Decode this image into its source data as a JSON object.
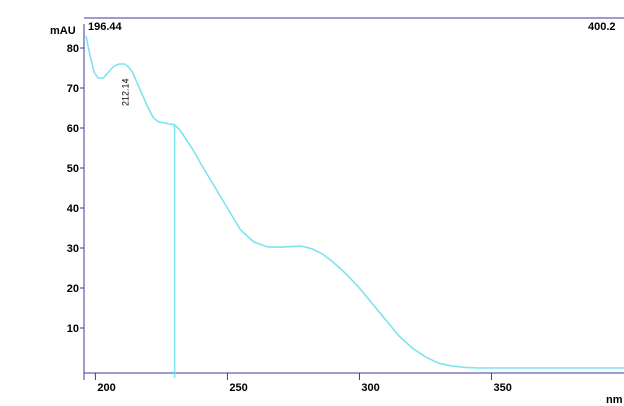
{
  "chart_data": {
    "type": "line",
    "ylabel": "mAU",
    "xlabel": "nm",
    "range_start_label": "196.44",
    "range_end_label": "400.2",
    "peak_label": "212.14",
    "cursor_x": 230,
    "xlim": [
      196.44,
      400.2
    ],
    "ylim": [
      -1,
      85
    ],
    "xticks": [
      200,
      250,
      300,
      350
    ],
    "yticks": [
      10,
      20,
      30,
      40,
      50,
      60,
      70,
      80
    ],
    "series": [
      {
        "color": "#7fe3ee",
        "x": [
          196.44,
          198,
          199.5,
          201,
          203,
          205,
          207,
          209,
          211,
          212.14,
          214,
          216,
          218,
          220,
          222,
          224,
          226,
          228,
          230,
          232,
          234,
          237,
          240,
          245,
          250,
          255,
          260,
          265,
          270,
          275,
          278,
          282,
          286,
          290,
          295,
          300,
          305,
          310,
          315,
          320,
          325,
          330,
          335,
          340,
          345,
          350,
          360,
          370,
          380,
          390,
          400.2
        ],
        "y": [
          83,
          78,
          74,
          72.5,
          72.5,
          74,
          75.5,
          76,
          76,
          75.5,
          74,
          71,
          68,
          65,
          62.5,
          61.5,
          61.3,
          61,
          60.8,
          59.5,
          57.5,
          54.5,
          51,
          45.5,
          40,
          34.5,
          31.5,
          30.3,
          30.2,
          30.4,
          30.5,
          29.8,
          28.5,
          26.5,
          23.5,
          20,
          16,
          12,
          8,
          5,
          2.8,
          1.2,
          0.5,
          0.15,
          0,
          0,
          0,
          0,
          0,
          0,
          0
        ]
      }
    ]
  }
}
